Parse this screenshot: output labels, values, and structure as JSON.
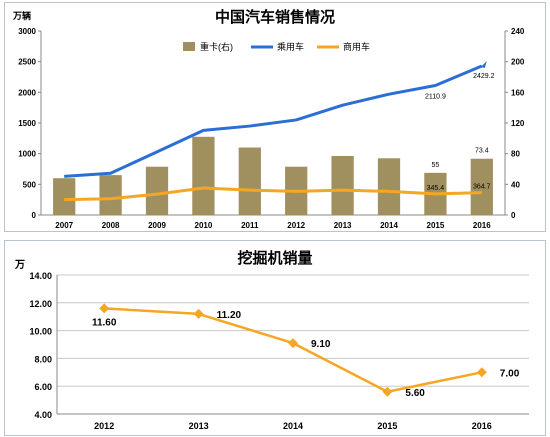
{
  "chart_data": [
    {
      "type": "bar",
      "title": "中国汽车销售情况",
      "y_unit": "万辆",
      "categories": [
        "2007",
        "2008",
        "2009",
        "2010",
        "2011",
        "2012",
        "2013",
        "2014",
        "2015",
        "2016"
      ],
      "ylim_left": [
        0,
        3000
      ],
      "yticks_left": [
        "0",
        "500",
        "1000",
        "1500",
        "2000",
        "2500",
        "3000"
      ],
      "ylim_right": [
        0,
        240
      ],
      "yticks_right": [
        "0",
        "40",
        "80",
        "120",
        "160",
        "200",
        "240"
      ],
      "grid": false,
      "legend_position": "top",
      "series": [
        {
          "name": "重卡(右)",
          "kind": "bar",
          "axis": "right",
          "color": "#a09060",
          "values": [
            48,
            52,
            63,
            102,
            88,
            63,
            77,
            74,
            55,
            73.4
          ]
        },
        {
          "name": "乘用车",
          "kind": "line",
          "axis": "left",
          "color": "#2a6ed6",
          "values": [
            630,
            680,
            1030,
            1380,
            1450,
            1550,
            1790,
            1970,
            2110.9,
            2429.2
          ]
        },
        {
          "name": "商用车",
          "kind": "line",
          "axis": "left",
          "color": "#f5a623",
          "values": [
            250,
            265,
            340,
            440,
            405,
            385,
            405,
            385,
            345.4,
            364.7
          ]
        }
      ],
      "annotations": [
        {
          "text": "55",
          "category": "2015",
          "series": "重卡(右)"
        },
        {
          "text": "73.4",
          "category": "2016",
          "series": "重卡(右)"
        },
        {
          "text": "2110.9",
          "category": "2015",
          "series": "乘用车"
        },
        {
          "text": "2429.2",
          "category": "2016",
          "series": "乘用车"
        },
        {
          "text": "345.4",
          "category": "2015",
          "series": "商用车"
        },
        {
          "text": "364.7",
          "category": "2016",
          "series": "商用车"
        }
      ]
    },
    {
      "type": "line",
      "title": "挖掘机销量",
      "y_unit": "万",
      "categories": [
        "2012",
        "2013",
        "2014",
        "2015",
        "2016"
      ],
      "ylim": [
        4,
        14
      ],
      "yticks": [
        "4.00",
        "6.00",
        "8.00",
        "10.00",
        "12.00",
        "14.00"
      ],
      "grid": true,
      "series": [
        {
          "kind": "line",
          "color": "#f5a623",
          "values": [
            11.6,
            11.2,
            9.1,
            5.6,
            7.0
          ],
          "labels": [
            "11.60",
            "11.20",
            "9.10",
            "5.60",
            "7.00"
          ]
        }
      ]
    }
  ]
}
